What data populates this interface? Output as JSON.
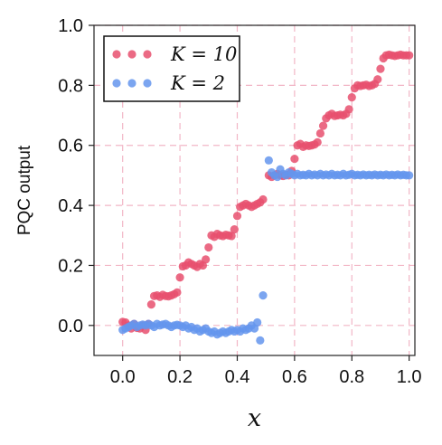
{
  "chart_data": {
    "type": "scatter",
    "title": "",
    "xlabel": "x",
    "ylabel": "PQC output",
    "xlim": [
      -0.1,
      1.02
    ],
    "ylim": [
      -0.1,
      1.0
    ],
    "x_ticks": [
      "0.0",
      "0.2",
      "0.4",
      "0.6",
      "0.8",
      "1.0"
    ],
    "y_ticks": [
      "0.0",
      "0.2",
      "0.4",
      "0.6",
      "0.8",
      "1.0"
    ],
    "grid": true,
    "legend": "top-left",
    "series": [
      {
        "name": "K = 10",
        "color": "#e8506e",
        "points": [
          [
            0.0,
            0.012
          ],
          [
            0.01,
            0.01
          ],
          [
            0.02,
            0.0
          ],
          [
            0.03,
            -0.01
          ],
          [
            0.04,
            0.005
          ],
          [
            0.05,
            -0.008
          ],
          [
            0.06,
            -0.01
          ],
          [
            0.07,
            0.0
          ],
          [
            0.08,
            -0.015
          ],
          [
            0.09,
            0.005
          ],
          [
            0.1,
            0.07
          ],
          [
            0.11,
            0.098
          ],
          [
            0.12,
            0.1
          ],
          [
            0.13,
            0.095
          ],
          [
            0.14,
            0.102
          ],
          [
            0.15,
            0.098
          ],
          [
            0.16,
            0.097
          ],
          [
            0.17,
            0.1
          ],
          [
            0.18,
            0.104
          ],
          [
            0.19,
            0.11
          ],
          [
            0.2,
            0.16
          ],
          [
            0.21,
            0.197
          ],
          [
            0.22,
            0.2
          ],
          [
            0.23,
            0.21
          ],
          [
            0.24,
            0.205
          ],
          [
            0.25,
            0.2
          ],
          [
            0.26,
            0.195
          ],
          [
            0.27,
            0.205
          ],
          [
            0.28,
            0.2
          ],
          [
            0.29,
            0.22
          ],
          [
            0.3,
            0.26
          ],
          [
            0.31,
            0.3
          ],
          [
            0.32,
            0.295
          ],
          [
            0.33,
            0.305
          ],
          [
            0.34,
            0.3
          ],
          [
            0.35,
            0.298
          ],
          [
            0.36,
            0.302
          ],
          [
            0.37,
            0.3
          ],
          [
            0.38,
            0.298
          ],
          [
            0.39,
            0.32
          ],
          [
            0.4,
            0.365
          ],
          [
            0.41,
            0.395
          ],
          [
            0.42,
            0.4
          ],
          [
            0.43,
            0.405
          ],
          [
            0.44,
            0.4
          ],
          [
            0.45,
            0.395
          ],
          [
            0.46,
            0.4
          ],
          [
            0.47,
            0.405
          ],
          [
            0.48,
            0.41
          ],
          [
            0.49,
            0.42
          ],
          [
            0.51,
            0.5
          ],
          [
            0.52,
            0.495
          ],
          [
            0.53,
            0.5
          ],
          [
            0.54,
            0.505
          ],
          [
            0.55,
            0.5
          ],
          [
            0.56,
            0.498
          ],
          [
            0.57,
            0.502
          ],
          [
            0.58,
            0.5
          ],
          [
            0.59,
            0.515
          ],
          [
            0.6,
            0.555
          ],
          [
            0.61,
            0.6
          ],
          [
            0.62,
            0.605
          ],
          [
            0.63,
            0.595
          ],
          [
            0.64,
            0.6
          ],
          [
            0.65,
            0.598
          ],
          [
            0.66,
            0.6
          ],
          [
            0.67,
            0.603
          ],
          [
            0.68,
            0.61
          ],
          [
            0.69,
            0.64
          ],
          [
            0.7,
            0.665
          ],
          [
            0.71,
            0.69
          ],
          [
            0.72,
            0.7
          ],
          [
            0.73,
            0.705
          ],
          [
            0.74,
            0.698
          ],
          [
            0.75,
            0.7
          ],
          [
            0.76,
            0.702
          ],
          [
            0.77,
            0.7
          ],
          [
            0.78,
            0.705
          ],
          [
            0.79,
            0.72
          ],
          [
            0.8,
            0.76
          ],
          [
            0.81,
            0.79
          ],
          [
            0.82,
            0.8
          ],
          [
            0.83,
            0.798
          ],
          [
            0.84,
            0.8
          ],
          [
            0.85,
            0.802
          ],
          [
            0.86,
            0.798
          ],
          [
            0.87,
            0.8
          ],
          [
            0.88,
            0.805
          ],
          [
            0.89,
            0.82
          ],
          [
            0.9,
            0.855
          ],
          [
            0.91,
            0.89
          ],
          [
            0.92,
            0.9
          ],
          [
            0.93,
            0.902
          ],
          [
            0.94,
            0.9
          ],
          [
            0.95,
            0.898
          ],
          [
            0.96,
            0.9
          ],
          [
            0.97,
            0.902
          ],
          [
            0.98,
            0.9
          ],
          [
            0.99,
            0.9
          ],
          [
            1.0,
            0.9
          ]
        ]
      },
      {
        "name": "K = 2",
        "color": "#6495ed",
        "points": [
          [
            0.0,
            -0.015
          ],
          [
            0.01,
            -0.01
          ],
          [
            0.02,
            -0.005
          ],
          [
            0.03,
            0.0
          ],
          [
            0.04,
            0.005
          ],
          [
            0.05,
            -0.005
          ],
          [
            0.06,
            0.0
          ],
          [
            0.07,
            0.003
          ],
          [
            0.08,
            0.0
          ],
          [
            0.09,
            0.005
          ],
          [
            0.1,
            0.0
          ],
          [
            0.11,
            -0.005
          ],
          [
            0.12,
            0.005
          ],
          [
            0.13,
            0.0
          ],
          [
            0.14,
            0.003
          ],
          [
            0.15,
            0.005
          ],
          [
            0.16,
            0.0
          ],
          [
            0.17,
            -0.005
          ],
          [
            0.18,
            0.0
          ],
          [
            0.19,
            0.002
          ],
          [
            0.2,
            0.0
          ],
          [
            0.21,
            -0.005
          ],
          [
            0.22,
            0.0
          ],
          [
            0.23,
            -0.01
          ],
          [
            0.24,
            -0.005
          ],
          [
            0.25,
            -0.015
          ],
          [
            0.26,
            -0.01
          ],
          [
            0.27,
            -0.02
          ],
          [
            0.28,
            -0.015
          ],
          [
            0.29,
            -0.01
          ],
          [
            0.3,
            -0.02
          ],
          [
            0.31,
            -0.025
          ],
          [
            0.32,
            -0.02
          ],
          [
            0.33,
            -0.03
          ],
          [
            0.34,
            -0.025
          ],
          [
            0.35,
            -0.02
          ],
          [
            0.36,
            -0.025
          ],
          [
            0.37,
            -0.02
          ],
          [
            0.38,
            -0.015
          ],
          [
            0.39,
            -0.02
          ],
          [
            0.4,
            -0.015
          ],
          [
            0.41,
            -0.02
          ],
          [
            0.42,
            -0.01
          ],
          [
            0.43,
            -0.015
          ],
          [
            0.44,
            -0.01
          ],
          [
            0.45,
            0.0
          ],
          [
            0.46,
            -0.01
          ],
          [
            0.47,
            0.01
          ],
          [
            0.48,
            -0.05
          ],
          [
            0.49,
            0.1
          ],
          [
            0.51,
            0.55
          ],
          [
            0.52,
            0.51
          ],
          [
            0.53,
            0.5
          ],
          [
            0.54,
            0.495
          ],
          [
            0.55,
            0.52
          ],
          [
            0.56,
            0.505
          ],
          [
            0.57,
            0.5
          ],
          [
            0.58,
            0.51
          ],
          [
            0.59,
            0.505
          ],
          [
            0.6,
            0.5
          ],
          [
            0.61,
            0.505
          ],
          [
            0.62,
            0.5
          ],
          [
            0.63,
            0.502
          ],
          [
            0.64,
            0.5
          ],
          [
            0.65,
            0.505
          ],
          [
            0.66,
            0.5
          ],
          [
            0.67,
            0.503
          ],
          [
            0.68,
            0.5
          ],
          [
            0.69,
            0.505
          ],
          [
            0.7,
            0.5
          ],
          [
            0.71,
            0.503
          ],
          [
            0.72,
            0.5
          ],
          [
            0.73,
            0.505
          ],
          [
            0.74,
            0.5
          ],
          [
            0.75,
            0.502
          ],
          [
            0.76,
            0.5
          ],
          [
            0.77,
            0.505
          ],
          [
            0.78,
            0.5
          ],
          [
            0.79,
            0.502
          ],
          [
            0.8,
            0.505
          ],
          [
            0.81,
            0.5
          ],
          [
            0.82,
            0.502
          ],
          [
            0.83,
            0.5
          ],
          [
            0.84,
            0.503
          ],
          [
            0.85,
            0.5
          ],
          [
            0.86,
            0.502
          ],
          [
            0.87,
            0.5
          ],
          [
            0.88,
            0.503
          ],
          [
            0.89,
            0.5
          ],
          [
            0.9,
            0.502
          ],
          [
            0.91,
            0.5
          ],
          [
            0.92,
            0.503
          ],
          [
            0.93,
            0.5
          ],
          [
            0.94,
            0.502
          ],
          [
            0.95,
            0.5
          ],
          [
            0.96,
            0.503
          ],
          [
            0.97,
            0.5
          ],
          [
            0.98,
            0.502
          ],
          [
            0.99,
            0.5
          ],
          [
            1.0,
            0.5
          ]
        ]
      }
    ]
  }
}
